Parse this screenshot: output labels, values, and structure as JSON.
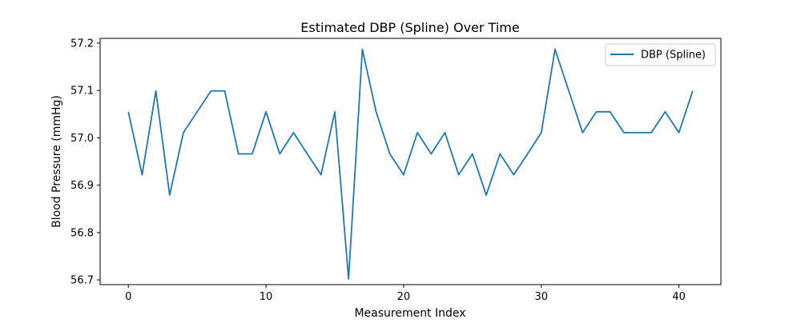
{
  "chart_data": {
    "type": "line",
    "title": "Estimated DBP (Spline) Over Time",
    "xlabel": "Measurement Index",
    "ylabel": "Blood Pressure (mmHg)",
    "xlim": [
      -2.05,
      43.05
    ],
    "ylim": [
      56.69,
      57.21
    ],
    "x_ticks": [
      0,
      10,
      20,
      30,
      40
    ],
    "y_ticks": [
      56.7,
      56.8,
      56.9,
      57.0,
      57.1,
      57.2
    ],
    "x_tick_labels": [
      "0",
      "10",
      "20",
      "30",
      "40"
    ],
    "y_tick_labels": [
      "56.7",
      "56.8",
      "56.9",
      "57.0",
      "57.1",
      "57.2"
    ],
    "grid": false,
    "legend": {
      "position": "top-right"
    },
    "series": [
      {
        "name": "DBP (Spline)",
        "color": "#1f77b4",
        "x": [
          0,
          1,
          2,
          3,
          4,
          5,
          6,
          7,
          8,
          9,
          10,
          11,
          12,
          13,
          14,
          15,
          16,
          17,
          18,
          19,
          20,
          21,
          22,
          23,
          24,
          25,
          26,
          27,
          28,
          29,
          30,
          31,
          32,
          33,
          34,
          35,
          36,
          37,
          38,
          39,
          40,
          41
        ],
        "y": [
          57.055,
          56.922,
          57.099,
          56.879,
          57.011,
          57.055,
          57.099,
          57.099,
          56.966,
          56.966,
          57.055,
          56.966,
          57.011,
          56.966,
          56.922,
          57.055,
          56.702,
          57.187,
          57.055,
          56.966,
          56.922,
          57.011,
          56.966,
          57.011,
          56.922,
          56.966,
          56.879,
          56.966,
          56.922,
          56.966,
          57.011,
          57.187,
          57.099,
          57.011,
          57.055,
          57.055,
          57.011,
          57.011,
          57.011,
          57.055,
          57.011,
          57.099
        ]
      }
    ]
  }
}
